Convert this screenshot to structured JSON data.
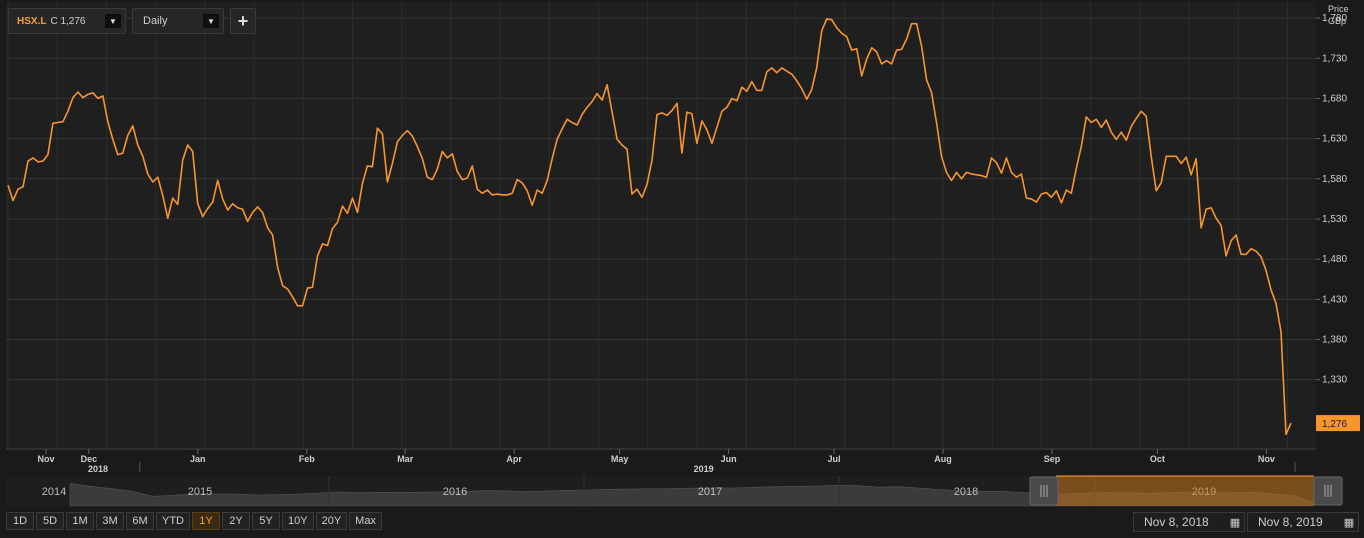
{
  "toolbar": {
    "ric": "HSX.L",
    "close_label": "C",
    "close_value": "1,276",
    "frequency": "Daily",
    "add_label": "+"
  },
  "price_header": {
    "line1": "Price",
    "line2": "GBp"
  },
  "last_price_label": "1,276",
  "colors": {
    "line": "#f7962e",
    "background": "#1a1a1a",
    "grid": "#333333",
    "accent": "#f5a03c"
  },
  "chart_data": {
    "type": "line",
    "series": [
      {
        "values": [
          1572,
          1553,
          1567,
          1570,
          1602,
          1606,
          1601,
          1602,
          1610,
          1649,
          1650,
          1651,
          1664,
          1681,
          1688,
          1681,
          1685,
          1687,
          1680,
          1683,
          1651,
          1629,
          1610,
          1612,
          1634,
          1646,
          1622,
          1608,
          1586,
          1576,
          1582,
          1559,
          1531,
          1556,
          1548,
          1603,
          1622,
          1614,
          1549,
          1533,
          1543,
          1551,
          1578,
          1555,
          1541,
          1549,
          1544,
          1542,
          1527,
          1538,
          1545,
          1538,
          1519,
          1510,
          1470,
          1447,
          1443,
          1433,
          1422,
          1422,
          1444,
          1445,
          1484,
          1499,
          1497,
          1518,
          1526,
          1546,
          1537,
          1556,
          1538,
          1574,
          1596,
          1595,
          1643,
          1636,
          1576,
          1599,
          1626,
          1634,
          1640,
          1633,
          1620,
          1605,
          1582,
          1579,
          1592,
          1614,
          1606,
          1611,
          1589,
          1579,
          1581,
          1596,
          1567,
          1562,
          1566,
          1560,
          1561,
          1560,
          1560,
          1562,
          1579,
          1575,
          1565,
          1547,
          1566,
          1562,
          1578,
          1605,
          1629,
          1642,
          1654,
          1650,
          1647,
          1660,
          1669,
          1676,
          1686,
          1678,
          1697,
          1663,
          1629,
          1622,
          1617,
          1561,
          1567,
          1557,
          1573,
          1603,
          1660,
          1662,
          1659,
          1665,
          1674,
          1612,
          1663,
          1661,
          1624,
          1652,
          1641,
          1624,
          1644,
          1664,
          1669,
          1680,
          1677,
          1694,
          1689,
          1701,
          1690,
          1690,
          1713,
          1718,
          1712,
          1718,
          1714,
          1710,
          1702,
          1692,
          1679,
          1691,
          1718,
          1764,
          1779,
          1778,
          1768,
          1761,
          1757,
          1740,
          1742,
          1708,
          1729,
          1743,
          1738,
          1723,
          1727,
          1723,
          1740,
          1741,
          1754,
          1773,
          1773,
          1745,
          1703,
          1687,
          1649,
          1608,
          1588,
          1578,
          1588,
          1580,
          1588,
          1586,
          1585,
          1584,
          1582,
          1606,
          1600,
          1587,
          1606,
          1588,
          1582,
          1586,
          1556,
          1555,
          1551,
          1561,
          1563,
          1557,
          1565,
          1550,
          1566,
          1562,
          1593,
          1620,
          1657,
          1650,
          1654,
          1644,
          1653,
          1638,
          1629,
          1638,
          1628,
          1645,
          1655,
          1664,
          1658,
          1608,
          1565,
          1575,
          1608,
          1608,
          1608,
          1599,
          1607,
          1585,
          1605,
          1519,
          1542,
          1544,
          1531,
          1522,
          1484,
          1503,
          1510,
          1486,
          1486,
          1493,
          1490,
          1483,
          1466,
          1442,
          1425,
          1390,
          1262,
          1276
        ]
      }
    ],
    "x_start": "2018-11-08",
    "x_end": "2019-11-08",
    "x_tick_labels": [
      "Nov",
      "Dec",
      "Jan",
      "Feb",
      "Mar",
      "Apr",
      "May",
      "Jun",
      "Jul",
      "Aug",
      "Sep",
      "Oct",
      "Nov"
    ],
    "x_year_labels": [
      "2018",
      "2019"
    ],
    "y_ticks": [
      1330,
      1380,
      1430,
      1480,
      1530,
      1580,
      1630,
      1680,
      1730,
      1780
    ],
    "y_tick_labels": [
      "1,330",
      "1,380",
      "1,430",
      "1,480",
      "1,530",
      "1,580",
      "1,630",
      "1,680",
      "1,730",
      "1,780"
    ],
    "ylim": [
      1245,
      1800
    ],
    "last_value": 1276,
    "grid": true
  },
  "navigator": {
    "years": [
      "2014",
      "2015",
      "2016",
      "2017",
      "2018",
      "2019"
    ],
    "overview": [
      1880,
      1790,
      1720,
      1640,
      1490,
      1520,
      1575,
      1560,
      1560,
      1530,
      1540,
      1560,
      1590,
      1620,
      1605,
      1612,
      1608,
      1615,
      1625,
      1630,
      1662,
      1654,
      1630,
      1650,
      1672,
      1680,
      1700,
      1710,
      1715,
      1718,
      1735,
      1745,
      1740,
      1760,
      1775,
      1790,
      1800,
      1822,
      1810,
      1765,
      1780,
      1735,
      1690,
      1650,
      1640,
      1640,
      1600,
      1585,
      1560,
      1590,
      1605,
      1595,
      1580,
      1598,
      1620,
      1600,
      1595,
      1610,
      1558,
      1525,
      1276
    ]
  },
  "ranges": [
    "1D",
    "5D",
    "1M",
    "3M",
    "6M",
    "YTD",
    "1Y",
    "2Y",
    "5Y",
    "10Y",
    "20Y",
    "Max"
  ],
  "active_range": "1Y",
  "date_range": {
    "from": "Nov 8, 2018",
    "to": "Nov 8, 2019"
  }
}
